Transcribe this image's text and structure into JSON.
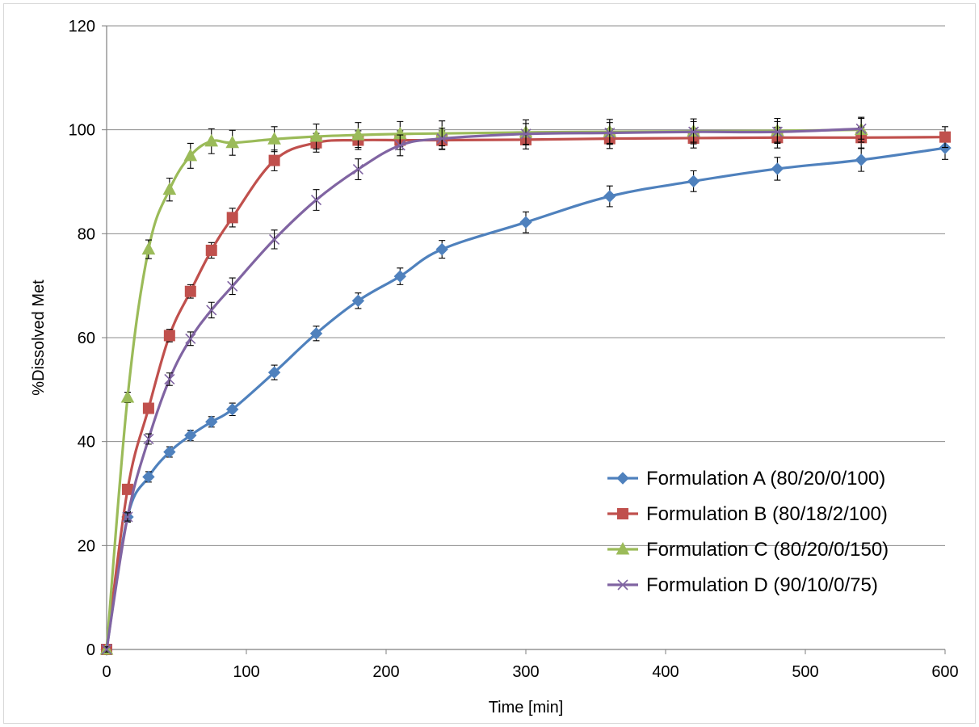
{
  "chart_data": {
    "type": "line",
    "title": "",
    "xlabel": "Time [min]",
    "ylabel": "%Dissolved Met",
    "xlim": [
      0,
      600
    ],
    "ylim": [
      0,
      120
    ],
    "xticks": [
      0,
      100,
      200,
      300,
      400,
      500,
      600
    ],
    "yticks": [
      0,
      20,
      40,
      60,
      80,
      100,
      120
    ],
    "grid": "horizontal",
    "legend_position": "bottom-right",
    "series": [
      {
        "name": "Formulation A (80/20/0/100)",
        "color": "#4f81bd",
        "marker": "diamond",
        "x": [
          0,
          15,
          30,
          45,
          60,
          75,
          90,
          120,
          150,
          180,
          210,
          240,
          300,
          360,
          420,
          480,
          540,
          600
        ],
        "y": [
          0,
          25.5,
          33.2,
          38.0,
          41.2,
          43.8,
          46.2,
          53.3,
          60.8,
          67.1,
          71.8,
          77.0,
          82.2,
          87.2,
          90.1,
          92.5,
          94.2,
          96.5
        ],
        "err": [
          0.8,
          1.0,
          1.0,
          1.0,
          1.0,
          1.0,
          1.2,
          1.4,
          1.4,
          1.5,
          1.6,
          1.7,
          2.0,
          2.0,
          2.0,
          2.2,
          2.2,
          2.2
        ]
      },
      {
        "name": "Formulation B (80/18/2/100)",
        "color": "#c0504d",
        "marker": "square",
        "x": [
          0,
          15,
          30,
          45,
          60,
          75,
          90,
          120,
          150,
          180,
          210,
          240,
          300,
          360,
          420,
          480,
          540,
          600
        ],
        "y": [
          0,
          30.8,
          46.4,
          60.4,
          68.9,
          76.8,
          83.1,
          94.1,
          97.5,
          98.0,
          98.0,
          98.0,
          98.1,
          98.3,
          98.4,
          98.5,
          98.5,
          98.6
        ],
        "err": [
          0.5,
          0.8,
          1.0,
          1.2,
          1.3,
          1.5,
          1.8,
          2.0,
          1.8,
          1.8,
          1.8,
          1.8,
          1.8,
          1.9,
          1.9,
          2.0,
          2.0,
          2.0
        ]
      },
      {
        "name": "Formulation C (80/20/0/150)",
        "color": "#9bbb59",
        "marker": "triangle",
        "x": [
          0,
          15,
          30,
          45,
          60,
          75,
          90,
          120,
          150,
          180,
          210,
          240,
          300,
          360,
          420,
          480,
          540
        ],
        "y": [
          0,
          48.5,
          77.0,
          88.5,
          95.0,
          97.8,
          97.5,
          98.2,
          98.7,
          99.0,
          99.2,
          99.3,
          99.5,
          99.6,
          99.7,
          99.8,
          100.0
        ],
        "err": [
          0.5,
          1.0,
          1.8,
          2.2,
          2.4,
          2.4,
          2.4,
          2.4,
          2.4,
          2.4,
          2.4,
          2.4,
          2.4,
          2.4,
          2.4,
          2.4,
          2.4
        ]
      },
      {
        "name": "Formulation D (90/10/0/75)",
        "color": "#8064a2",
        "marker": "x",
        "x": [
          0,
          15,
          30,
          45,
          60,
          75,
          90,
          120,
          150,
          180,
          210,
          240,
          300,
          360,
          420,
          480,
          540
        ],
        "y": [
          0,
          25.5,
          40.5,
          52.0,
          59.8,
          65.3,
          69.9,
          78.9,
          86.5,
          92.4,
          97.0,
          98.3,
          99.2,
          99.4,
          99.6,
          99.6,
          100.2
        ],
        "err": [
          0.5,
          0.8,
          1.0,
          1.2,
          1.3,
          1.5,
          1.6,
          1.8,
          2.0,
          2.0,
          2.0,
          2.0,
          2.0,
          2.0,
          2.0,
          2.0,
          2.0
        ]
      }
    ]
  }
}
